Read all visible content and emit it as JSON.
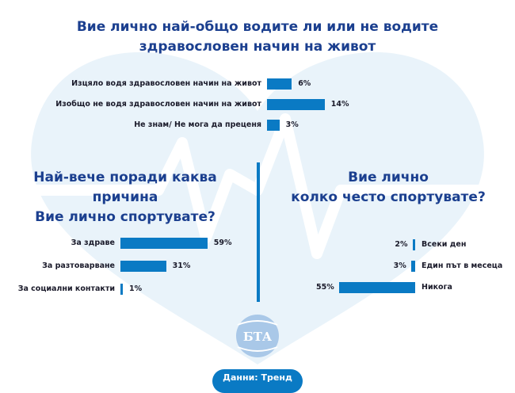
{
  "chart_data": [
    {
      "type": "bar",
      "orientation": "horizontal",
      "title": "Вие лично най-общо водите ли или не водите здравословен начин на живот",
      "title_lines": [
        "Вие лично най-общо водите ли или не водите",
        "здравословен начин на живот"
      ],
      "categories": [
        "Изцяло водя здравословен начин на живот",
        "Изобщо не водя здравословен начин на живот",
        "Не знам/ Не мога да преценя"
      ],
      "values": [
        6,
        14,
        3
      ],
      "value_labels": [
        "6%",
        "14%",
        "3%"
      ],
      "unit": "%"
    },
    {
      "type": "bar",
      "orientation": "horizontal",
      "title": "Най-вече поради каква причина Вие лично спортувате?",
      "title_lines": [
        "Най-вече поради каква причина",
        "Вие лично спортувате?"
      ],
      "categories": [
        "За здраве",
        "За разтоварване",
        "За социални контакти"
      ],
      "values": [
        59,
        31,
        1
      ],
      "value_labels": [
        "59%",
        "31%",
        "1%"
      ],
      "unit": "%"
    },
    {
      "type": "bar",
      "orientation": "horizontal",
      "title": "Вие лично колко често спортувате?",
      "title_lines": [
        "Вие лично",
        "колко често спортувате?"
      ],
      "categories": [
        "Всеки ден",
        "Един път в месеца",
        "Никога"
      ],
      "values": [
        2,
        3,
        55
      ],
      "value_labels": [
        "2%",
        "3%",
        "55%"
      ],
      "unit": "%"
    }
  ],
  "colors": {
    "bar": "#0a7ac4",
    "title": "#1b3f8f",
    "background_shape": "#e9f3fa"
  },
  "logo": {
    "text": "БТА"
  },
  "footer": {
    "source": "Данни: Тренд"
  }
}
